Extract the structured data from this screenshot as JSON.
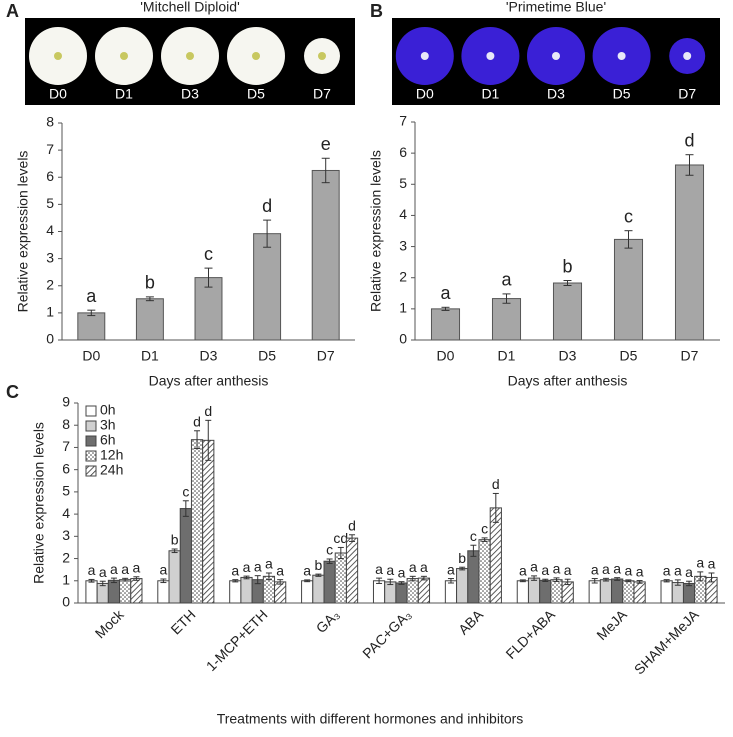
{
  "chart_data": [
    {
      "type": "bar",
      "panel": "A",
      "title": "'Mitchell Diploid'",
      "categories": [
        "D0",
        "D1",
        "D3",
        "D5",
        "D7"
      ],
      "values": [
        1.0,
        1.52,
        2.3,
        3.92,
        6.25
      ],
      "errors": [
        0.1,
        0.07,
        0.35,
        0.5,
        0.45
      ],
      "letters": [
        "a",
        "b",
        "c",
        "d",
        "e"
      ],
      "color": "#a6a6a6",
      "ylim": [
        0,
        8
      ],
      "yticks": [
        0,
        1,
        2,
        3,
        4,
        5,
        6,
        7,
        8
      ],
      "ylabel": "Relative expression levels",
      "xlabel": "Days after anthesis"
    },
    {
      "type": "bar",
      "panel": "B",
      "title": "'Primetime Blue'",
      "categories": [
        "D0",
        "D1",
        "D3",
        "D5",
        "D7"
      ],
      "values": [
        1.0,
        1.33,
        1.83,
        3.23,
        5.62
      ],
      "errors": [
        0.05,
        0.15,
        0.08,
        0.28,
        0.33
      ],
      "letters": [
        "a",
        "a",
        "b",
        "c",
        "d"
      ],
      "color": "#a6a6a6",
      "ylim": [
        0,
        7
      ],
      "yticks": [
        0,
        1,
        2,
        3,
        4,
        5,
        6,
        7
      ],
      "ylabel": "Relative expression levels",
      "xlabel": "Days after anthesis"
    },
    {
      "type": "grouped_bar",
      "panel": "C",
      "categories": [
        "Mock",
        "ETH",
        "1-MCP+ETH",
        "GA₃",
        "PAC+GA₃",
        "ABA",
        "FLD+ABA",
        "MeJA",
        "SHAM+MeJA"
      ],
      "series": [
        {
          "name": "0h",
          "color": "#ffffff",
          "values": [
            1.0,
            1.0,
            1.0,
            1.0,
            1.0,
            1.0,
            1.0,
            1.0,
            1.0
          ],
          "errors": [
            0.06,
            0.08,
            0.05,
            0.04,
            0.12,
            0.1,
            0.04,
            0.1,
            0.05
          ],
          "letters": [
            "a",
            "a",
            "a",
            "a",
            "a",
            "a",
            "a",
            "a",
            "a"
          ]
        },
        {
          "name": "3h",
          "color": "#d0d0d0",
          "values": [
            0.88,
            2.35,
            1.15,
            1.25,
            0.95,
            1.55,
            1.12,
            1.05,
            0.92
          ],
          "errors": [
            0.1,
            0.08,
            0.06,
            0.05,
            0.12,
            0.06,
            0.1,
            0.06,
            0.12
          ],
          "letters": [
            "a",
            "b",
            "a",
            "b",
            "a",
            "b",
            "a",
            "a",
            "a"
          ]
        },
        {
          "name": "6h",
          "color": "#6e6e6e",
          "values": [
            1.02,
            4.25,
            1.05,
            1.88,
            0.9,
            2.35,
            1.02,
            1.08,
            0.88
          ],
          "errors": [
            0.1,
            0.35,
            0.18,
            0.1,
            0.06,
            0.25,
            0.05,
            0.06,
            0.1
          ],
          "letters": [
            "a",
            "c",
            "a",
            "c",
            "a",
            "c",
            "a",
            "a",
            "a"
          ]
        },
        {
          "name": "12h",
          "color": "#ffffff",
          "pattern": "dots",
          "values": [
            1.05,
            7.35,
            1.2,
            2.25,
            1.1,
            2.85,
            1.05,
            1.0,
            1.2
          ],
          "errors": [
            0.06,
            0.4,
            0.15,
            0.25,
            0.1,
            0.08,
            0.08,
            0.04,
            0.2
          ],
          "letters": [
            "a",
            "d",
            "a",
            "cd",
            "a",
            "c",
            "a",
            "a",
            "a"
          ]
        },
        {
          "name": "24h",
          "color": "#ffffff",
          "pattern": "hatch",
          "values": [
            1.1,
            7.32,
            0.95,
            2.92,
            1.12,
            4.28,
            0.95,
            0.95,
            1.15
          ],
          "errors": [
            0.08,
            0.9,
            0.1,
            0.15,
            0.08,
            0.65,
            0.12,
            0.06,
            0.2
          ],
          "letters": [
            "a",
            "d",
            "a",
            "d",
            "a",
            "d",
            "a",
            "a",
            "a"
          ]
        }
      ],
      "ylim": [
        0,
        9
      ],
      "yticks": [
        0,
        1,
        2,
        3,
        4,
        5,
        6,
        7,
        8,
        9
      ],
      "ylabel": "Relative expression levels",
      "xlabel": "Treatments with different hormones and inhibitors"
    }
  ]
}
